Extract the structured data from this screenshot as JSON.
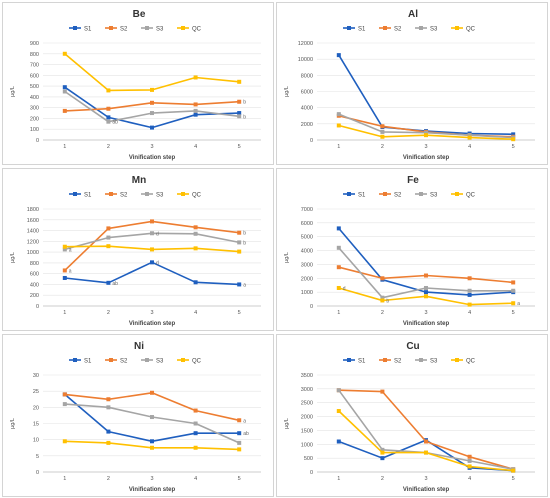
{
  "legend_labels": [
    "S1",
    "S2",
    "S3",
    "QC"
  ],
  "colors": {
    "S1": "#1f5fbf",
    "S2": "#ed7d31",
    "S3": "#a5a5a5",
    "QC": "#ffc000"
  },
  "chart_data": [
    {
      "type": "line",
      "title": "Be",
      "xlabel": "Vinification step",
      "ylabel": "µg/L",
      "categories": [
        "1",
        "2",
        "3",
        "4",
        "5"
      ],
      "ylim": [
        0,
        900
      ],
      "yticks": [
        0,
        100,
        200,
        300,
        400,
        500,
        600,
        700,
        800,
        900
      ],
      "grid": true,
      "legend": "top",
      "series": [
        {
          "name": "S1",
          "values": [
            490,
            210,
            115,
            235,
            250
          ],
          "letters": [
            "",
            "",
            "",
            "",
            ""
          ]
        },
        {
          "name": "S2",
          "values": [
            270,
            290,
            345,
            330,
            355
          ],
          "letters": [
            "",
            "",
            "",
            "",
            "b"
          ]
        },
        {
          "name": "S3",
          "values": [
            450,
            170,
            250,
            270,
            220
          ],
          "letters": [
            "",
            "ab",
            "",
            "",
            "b"
          ]
        },
        {
          "name": "QC",
          "values": [
            800,
            460,
            465,
            580,
            540
          ],
          "letters": [
            "",
            "",
            "",
            "",
            ""
          ]
        }
      ]
    },
    {
      "type": "line",
      "title": "Al",
      "xlabel": "Vinification step",
      "ylabel": "µg/L",
      "categories": [
        "1",
        "2",
        "3",
        "4",
        "5"
      ],
      "ylim": [
        0,
        12000
      ],
      "yticks": [
        0,
        2000,
        4000,
        6000,
        8000,
        10000,
        12000
      ],
      "grid": true,
      "legend": "top",
      "series": [
        {
          "name": "S1",
          "values": [
            10500,
            1600,
            1100,
            800,
            700
          ],
          "letters": [
            "",
            "",
            "",
            "",
            ""
          ]
        },
        {
          "name": "S2",
          "values": [
            3000,
            1700,
            1000,
            600,
            400
          ],
          "letters": [
            "",
            "",
            "",
            "",
            ""
          ]
        },
        {
          "name": "S3",
          "values": [
            3200,
            1000,
            900,
            600,
            300
          ],
          "letters": [
            "",
            "",
            "",
            "",
            ""
          ]
        },
        {
          "name": "QC",
          "values": [
            1800,
            400,
            600,
            300,
            100
          ],
          "letters": [
            "",
            "",
            "",
            "",
            ""
          ]
        }
      ]
    },
    {
      "type": "line",
      "title": "Mn",
      "xlabel": "Vinification step",
      "ylabel": "µg/L",
      "categories": [
        "1",
        "2",
        "3",
        "4",
        "5"
      ],
      "ylim": [
        0,
        1800
      ],
      "yticks": [
        0,
        200,
        400,
        600,
        800,
        1000,
        1200,
        1400,
        1600,
        1800
      ],
      "grid": true,
      "legend": "top",
      "series": [
        {
          "name": "S1",
          "values": [
            520,
            430,
            810,
            440,
            400
          ],
          "letters": [
            "",
            "ab",
            "d",
            "",
            "a"
          ]
        },
        {
          "name": "S2",
          "values": [
            660,
            1440,
            1570,
            1460,
            1360
          ],
          "letters": [
            "a",
            "",
            "",
            "",
            "b"
          ]
        },
        {
          "name": "S3",
          "values": [
            1050,
            1270,
            1350,
            1340,
            1180
          ],
          "letters": [
            "a",
            "",
            "d",
            "",
            "b"
          ]
        },
        {
          "name": "QC",
          "values": [
            1100,
            1110,
            1050,
            1070,
            1010
          ],
          "letters": [
            "",
            "",
            "",
            "",
            ""
          ]
        }
      ]
    },
    {
      "type": "line",
      "title": "Fe",
      "xlabel": "Vinification step",
      "ylabel": "µg/L",
      "categories": [
        "1",
        "2",
        "3",
        "4",
        "5"
      ],
      "ylim": [
        0,
        7000
      ],
      "yticks": [
        0,
        1000,
        2000,
        3000,
        4000,
        5000,
        6000,
        7000
      ],
      "grid": true,
      "legend": "top",
      "series": [
        {
          "name": "S1",
          "values": [
            5600,
            1900,
            1000,
            800,
            1000
          ],
          "letters": [
            "",
            "",
            "",
            "",
            ""
          ]
        },
        {
          "name": "S2",
          "values": [
            2800,
            2000,
            2200,
            2000,
            1700
          ],
          "letters": [
            "",
            "",
            "",
            "",
            ""
          ]
        },
        {
          "name": "S3",
          "values": [
            4200,
            600,
            1300,
            1100,
            1100
          ],
          "letters": [
            "",
            "",
            "",
            "",
            ""
          ]
        },
        {
          "name": "QC",
          "values": [
            1300,
            400,
            700,
            100,
            200
          ],
          "letters": [
            "d",
            "b",
            "",
            "",
            "a"
          ]
        }
      ]
    },
    {
      "type": "line",
      "title": "Ni",
      "xlabel": "Vinification step",
      "ylabel": "µg/L",
      "categories": [
        "1",
        "2",
        "3",
        "4",
        "5"
      ],
      "ylim": [
        0,
        30
      ],
      "yticks": [
        0,
        5,
        10,
        15,
        20,
        25,
        30
      ],
      "grid": true,
      "legend": "top",
      "series": [
        {
          "name": "S1",
          "values": [
            24,
            12.5,
            9.5,
            12,
            12
          ],
          "letters": [
            "",
            "",
            "",
            "",
            "ab"
          ]
        },
        {
          "name": "S2",
          "values": [
            24,
            22.5,
            24.5,
            19,
            16
          ],
          "letters": [
            "",
            "",
            "",
            "",
            "a"
          ]
        },
        {
          "name": "S3",
          "values": [
            21,
            20,
            17,
            15,
            9
          ],
          "letters": [
            "",
            "",
            "",
            "",
            ""
          ]
        },
        {
          "name": "QC",
          "values": [
            9.5,
            9,
            7.5,
            7.5,
            7
          ],
          "letters": [
            "",
            "",
            "",
            "",
            ""
          ]
        }
      ]
    },
    {
      "type": "line",
      "title": "Cu",
      "xlabel": "Vinification step",
      "ylabel": "µg/L",
      "categories": [
        "1",
        "2",
        "3",
        "4",
        "5"
      ],
      "ylim": [
        0,
        3500
      ],
      "yticks": [
        0,
        500,
        1000,
        1500,
        2000,
        2500,
        3000,
        3500
      ],
      "grid": true,
      "legend": "top",
      "series": [
        {
          "name": "S1",
          "values": [
            1100,
            500,
            1150,
            150,
            50
          ],
          "letters": [
            "",
            "",
            "",
            "",
            ""
          ]
        },
        {
          "name": "S2",
          "values": [
            2950,
            2900,
            1100,
            550,
            100
          ],
          "letters": [
            "",
            "",
            "",
            "",
            ""
          ]
        },
        {
          "name": "S3",
          "values": [
            2950,
            800,
            700,
            400,
            100
          ],
          "letters": [
            "",
            "",
            "",
            "",
            ""
          ]
        },
        {
          "name": "QC",
          "values": [
            2200,
            700,
            700,
            200,
            50
          ],
          "letters": [
            "",
            "",
            "",
            "",
            ""
          ]
        }
      ]
    }
  ]
}
